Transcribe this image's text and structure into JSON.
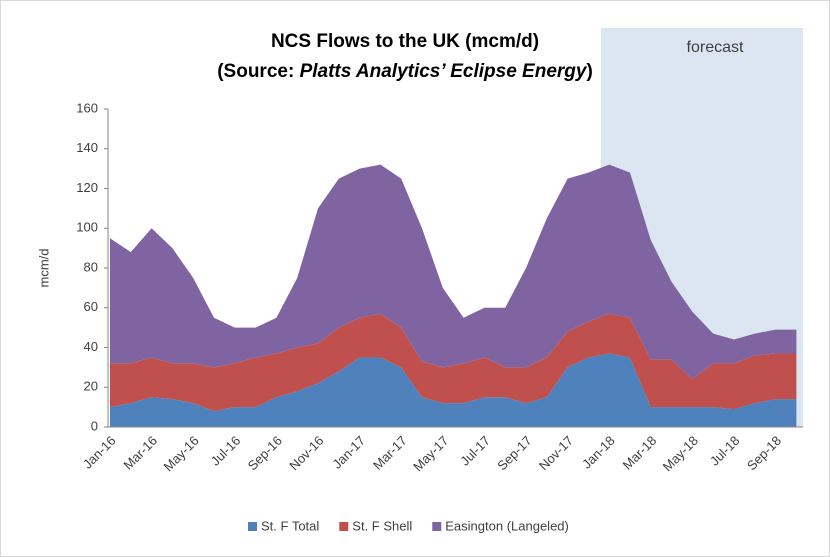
{
  "chart_data": {
    "type": "stacked-area",
    "title": "NCS Flows to the UK (mcm/d)",
    "subtitle_parts": [
      "(Source: ",
      "Platts Analytics’ Eclipse Energy",
      ")"
    ],
    "annotation": "forecast",
    "y_label": "mcm/d",
    "categories": [
      "Jan-16",
      null,
      "Mar-16",
      null,
      "May-16",
      null,
      "Jul-16",
      null,
      "Sep-16",
      null,
      "Nov-16",
      null,
      "Jan-17",
      null,
      "Mar-17",
      null,
      "May-17",
      null,
      "Jul-17",
      null,
      "Sep-17",
      null,
      "Nov-17",
      null,
      "Jan-18",
      null,
      "Mar-18",
      null,
      "May-18",
      null,
      "Jul-18",
      null,
      "Sep-18",
      null
    ],
    "series": [
      {
        "name": "St. F Total",
        "color": "#4f81bd",
        "values": [
          10,
          12,
          15,
          14,
          12,
          8,
          10,
          10,
          15,
          18,
          22,
          28,
          35,
          35,
          30,
          15,
          12,
          12,
          15,
          15,
          12,
          15,
          30,
          35,
          37,
          35,
          10,
          10,
          10,
          10,
          9,
          12,
          14,
          14
        ]
      },
      {
        "name": "St. F Shell",
        "color": "#c0504d",
        "values": [
          22,
          20,
          20,
          18,
          20,
          22,
          22,
          25,
          22,
          22,
          20,
          22,
          20,
          22,
          20,
          18,
          18,
          20,
          20,
          15,
          18,
          20,
          18,
          18,
          20,
          20,
          24,
          24,
          14,
          22,
          23,
          24,
          23,
          23
        ]
      },
      {
        "name": "Easington (Langeled)",
        "color": "#8064a2",
        "values": [
          63,
          56,
          65,
          58,
          43,
          25,
          18,
          15,
          18,
          35,
          68,
          75,
          75,
          75,
          75,
          67,
          40,
          23,
          25,
          30,
          50,
          70,
          77,
          75,
          75,
          73,
          60,
          39,
          34,
          15,
          12,
          11,
          12,
          12
        ]
      }
    ],
    "ylim": [
      0,
      160
    ],
    "yticks": [
      0,
      20,
      40,
      60,
      80,
      100,
      120,
      140,
      160
    ],
    "forecast_color": "#dce6f2",
    "legend": "bottom"
  }
}
